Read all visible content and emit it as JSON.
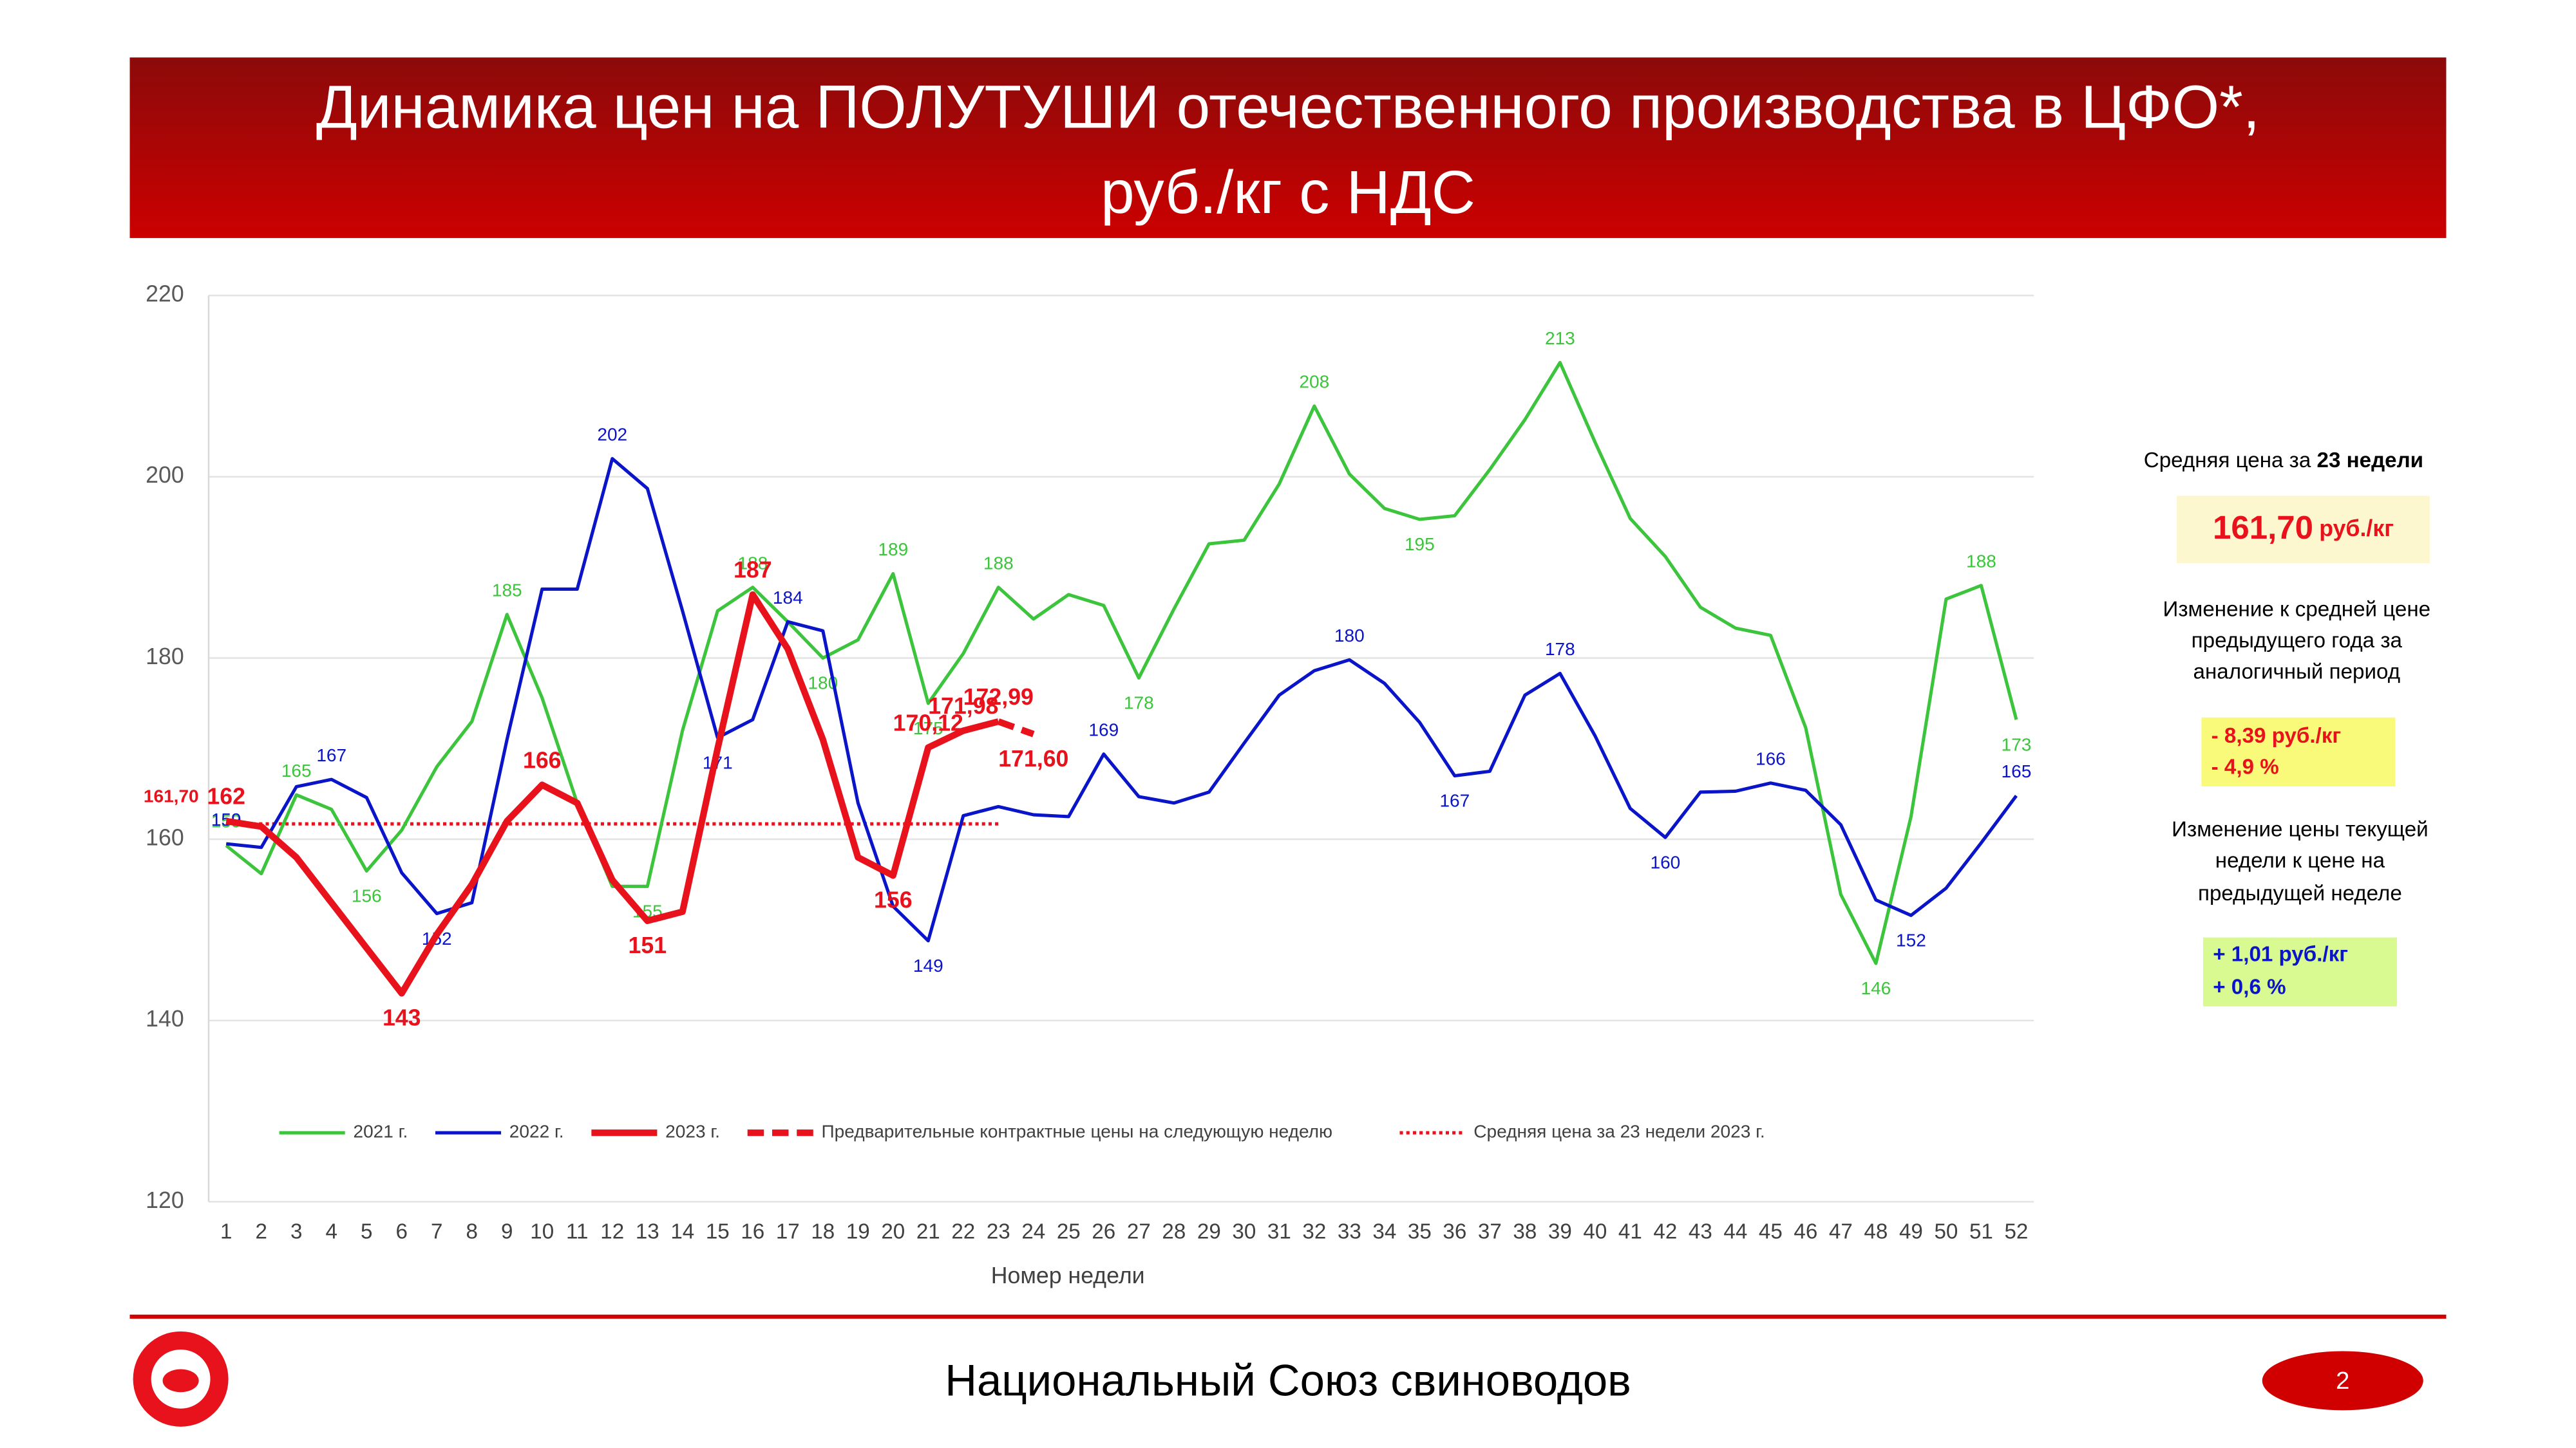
{
  "header": {
    "title_line1": "Динамика цен на ПОЛУТУШИ отечественного производства в ЦФО*,",
    "title_line2": "руб./кг с НДС"
  },
  "chart_data": {
    "type": "line",
    "x_label": "Номер недели",
    "x": [
      1,
      2,
      3,
      4,
      5,
      6,
      7,
      8,
      9,
      10,
      11,
      12,
      13,
      14,
      15,
      16,
      17,
      18,
      19,
      20,
      21,
      22,
      23,
      24,
      25,
      26,
      27,
      28,
      29,
      30,
      31,
      32,
      33,
      34,
      35,
      36,
      37,
      38,
      39,
      40,
      41,
      42,
      43,
      44,
      45,
      46,
      47,
      48,
      49,
      50,
      51,
      52
    ],
    "xlim": [
      0.5,
      52.5
    ],
    "ylim": [
      120,
      220
    ],
    "yticks": [
      120,
      140,
      160,
      180,
      200,
      220
    ],
    "grid": true,
    "series": [
      {
        "name": "2021 г.",
        "color": "#3cc43c",
        "style": "solid",
        "width": 2,
        "values": [
          159.3,
          156.2,
          164.9,
          163.3,
          156.5,
          161,
          168,
          173,
          184.8,
          175.6,
          164,
          154.8,
          154.8,
          172,
          185.2,
          187.8,
          184,
          180,
          182,
          189.3,
          175,
          180.5,
          187.8,
          184.3,
          187,
          185.8,
          177.8,
          185.4,
          192.6,
          193,
          199.2,
          207.8,
          200.3,
          196.5,
          195.3,
          195.7,
          200.8,
          206.3,
          212.6,
          203.8,
          195.4,
          191.2,
          185.6,
          183.3,
          182.5,
          172.3,
          153.9,
          146.3,
          162.5,
          186.5,
          188,
          173.2
        ],
        "value_labels": [
          "159",
          null,
          "165",
          null,
          "156",
          null,
          null,
          null,
          "185",
          null,
          null,
          null,
          "155",
          null,
          null,
          "188",
          null,
          "180",
          null,
          "189",
          "175",
          null,
          "188",
          null,
          null,
          null,
          "178",
          null,
          null,
          null,
          null,
          "208",
          null,
          null,
          "195",
          null,
          null,
          null,
          "213",
          null,
          null,
          null,
          null,
          null,
          null,
          null,
          null,
          "146",
          null,
          null,
          "188",
          "173"
        ]
      },
      {
        "name": "2022 г.",
        "color": "#0a14c8",
        "style": "solid",
        "width": 2,
        "values": [
          159.5,
          159.1,
          165.8,
          166.6,
          164.6,
          156.3,
          151.8,
          153,
          171,
          187.6,
          187.6,
          202,
          198.7,
          185.2,
          171.2,
          173.2,
          184,
          183,
          164,
          152.6,
          148.8,
          162.6,
          163.6,
          162.7,
          162.5,
          169.4,
          164.7,
          164,
          165.2,
          170.6,
          175.9,
          178.6,
          179.8,
          177.2,
          172.9,
          167,
          167.5,
          175.9,
          178.3,
          171.4,
          163.4,
          160.2,
          165.2,
          165.3,
          166.2,
          165.4,
          161.6,
          153.3,
          151.6,
          154.6,
          159.6,
          164.8
        ],
        "value_labels": [
          "159",
          null,
          null,
          "167",
          null,
          null,
          "152",
          null,
          null,
          null,
          null,
          "202",
          null,
          null,
          "171",
          null,
          "184",
          null,
          null,
          null,
          "149",
          null,
          null,
          null,
          null,
          "169",
          null,
          null,
          null,
          null,
          null,
          null,
          "180",
          null,
          null,
          "167",
          null,
          null,
          "178",
          null,
          null,
          "160",
          null,
          null,
          "166",
          null,
          null,
          null,
          "152",
          null,
          null,
          "165"
        ]
      },
      {
        "name": "2023 г.",
        "color": "#e8121c",
        "style": "solid",
        "width": 4,
        "values": [
          162,
          161.4,
          158,
          153,
          148,
          143,
          149.5,
          155,
          162,
          166,
          164,
          155.5,
          151,
          152,
          170,
          187,
          181,
          171,
          158,
          156,
          170.12,
          171.98,
          172.99,
          null,
          null,
          null,
          null,
          null,
          null,
          null,
          null,
          null,
          null,
          null,
          null,
          null,
          null,
          null,
          null,
          null,
          null,
          null,
          null,
          null,
          null,
          null,
          null,
          null,
          null,
          null,
          null,
          null
        ],
        "value_labels": [
          "162",
          null,
          null,
          null,
          null,
          "143",
          null,
          null,
          null,
          "166",
          null,
          null,
          "151",
          null,
          null,
          "187",
          null,
          null,
          null,
          "156",
          "170,12",
          "171,98",
          "172,99",
          null,
          null,
          null,
          null,
          null,
          null,
          null,
          null,
          null,
          null,
          null,
          null,
          null,
          null,
          null,
          null,
          null,
          null,
          null,
          null,
          null,
          null,
          null,
          null,
          null,
          null,
          null,
          null,
          null
        ]
      },
      {
        "name": "Предварительные контрактные цены на следующую неделю",
        "color": "#e8121c",
        "style": "dashed",
        "width": 4,
        "values": [
          null,
          null,
          null,
          null,
          null,
          null,
          null,
          null,
          null,
          null,
          null,
          null,
          null,
          null,
          null,
          null,
          null,
          null,
          null,
          null,
          null,
          null,
          172.99,
          171.6,
          null,
          null,
          null,
          null,
          null,
          null,
          null,
          null,
          null,
          null,
          null,
          null,
          null,
          null,
          null,
          null,
          null,
          null,
          null,
          null,
          null,
          null,
          null,
          null,
          null,
          null,
          null,
          null
        ],
        "value_labels": [
          null,
          null,
          null,
          null,
          null,
          null,
          null,
          null,
          null,
          null,
          null,
          null,
          null,
          null,
          null,
          null,
          null,
          null,
          null,
          null,
          null,
          null,
          null,
          "171,60",
          null,
          null,
          null,
          null,
          null,
          null,
          null,
          null,
          null,
          null,
          null,
          null,
          null,
          null,
          null,
          null,
          null,
          null,
          null,
          null,
          null,
          null,
          null,
          null,
          null,
          null,
          null,
          null
        ]
      }
    ],
    "average": {
      "name": "Средняя цена за 23 недели 2023 г.",
      "color": "#e8121c",
      "value": 161.7,
      "value_label": "161,70",
      "from": 1,
      "to": 23
    }
  },
  "side_panel": {
    "avg_title": "Средняя цена за",
    "avg_title_bold": "23 недели",
    "avg_value": "161,70",
    "avg_unit": "руб./кг",
    "change_year_lines": [
      "Изменение к средней цене",
      "предыдущего года за",
      "аналогичный период"
    ],
    "change_year_values": [
      "- 8,39 руб./кг",
      "- 4,9 %"
    ],
    "change_week_lines": [
      "Изменение цены текущей",
      "недели к цене на",
      "предыдущей неделе"
    ],
    "change_week_values": [
      "+ 1,01 руб./кг",
      "+ 0,6 %"
    ]
  },
  "footer": {
    "organization": "Национальный Союз свиноводов",
    "page": "2"
  }
}
